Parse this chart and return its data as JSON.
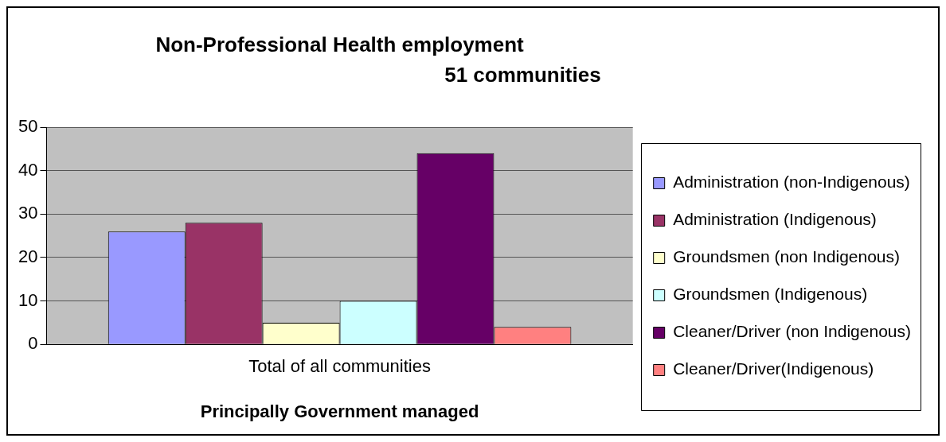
{
  "chart_data": {
    "type": "bar",
    "title": "Non-Professional Health employment",
    "subtitle": "51 communities",
    "xlabel": "Principally Government managed",
    "categories": [
      "Total of all communities"
    ],
    "series": [
      {
        "name": "Administration (non-Indigenous)",
        "color": "#9999ff",
        "values": [
          26
        ]
      },
      {
        "name": "Administration (Indigenous)",
        "color": "#993366",
        "values": [
          28
        ]
      },
      {
        "name": "Groundsmen (non Indigenous)",
        "color": "#ffffcc",
        "values": [
          5
        ]
      },
      {
        "name": "Groundsmen (Indigenous)",
        "color": "#ccffff",
        "values": [
          10
        ]
      },
      {
        "name": "Cleaner/Driver (non Indigenous)",
        "color": "#660066",
        "values": [
          44
        ]
      },
      {
        "name": "Cleaner/Driver(Indigenous)",
        "color": "#ff8080",
        "values": [
          4
        ]
      }
    ],
    "ylim": [
      0,
      50
    ],
    "yticks": [
      0,
      10,
      20,
      30,
      40,
      50
    ],
    "grid": "y",
    "legend": "right"
  }
}
